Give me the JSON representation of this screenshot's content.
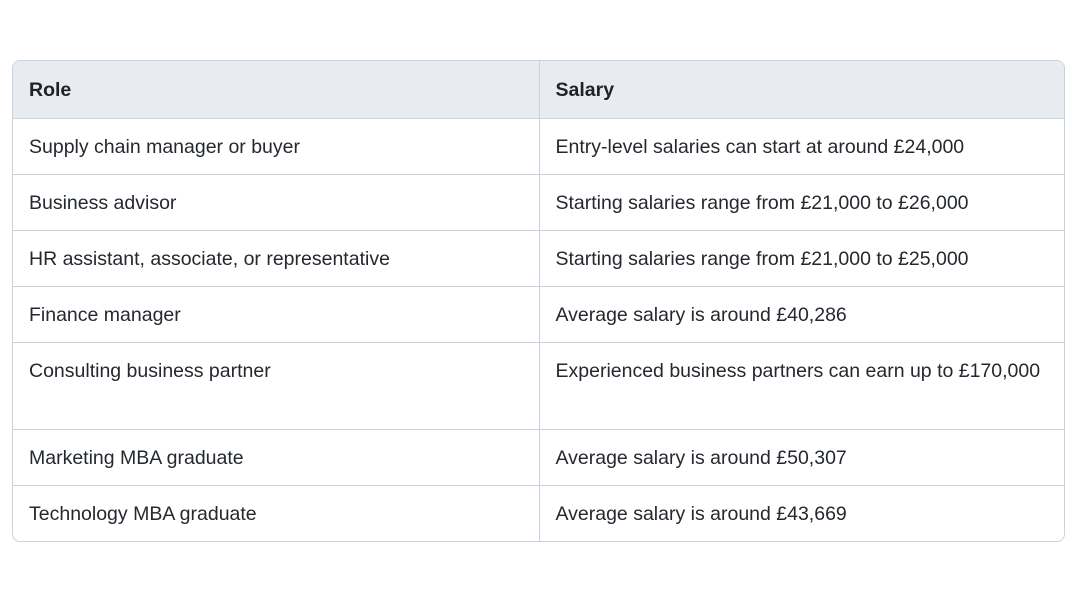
{
  "table": {
    "headers": [
      "Role",
      "Salary"
    ],
    "rows": [
      {
        "role": "Supply chain manager or buyer",
        "salary": "Entry-level salaries can start at around £24,000"
      },
      {
        "role": "Business advisor",
        "salary": "Starting salaries range from £21,000 to £26,000"
      },
      {
        "role": "HR assistant, associate, or representative",
        "salary": "Starting salaries range from £21,000 to £25,000"
      },
      {
        "role": "Finance manager",
        "salary": "Average salary is around £40,286"
      },
      {
        "role": "Consulting business partner",
        "salary": "Experienced business partners can earn up to £170,000"
      },
      {
        "role": "Marketing MBA graduate",
        "salary": "Average salary is around £50,307"
      },
      {
        "role": "Technology MBA graduate",
        "salary": "Average salary is around £43,669"
      }
    ]
  }
}
